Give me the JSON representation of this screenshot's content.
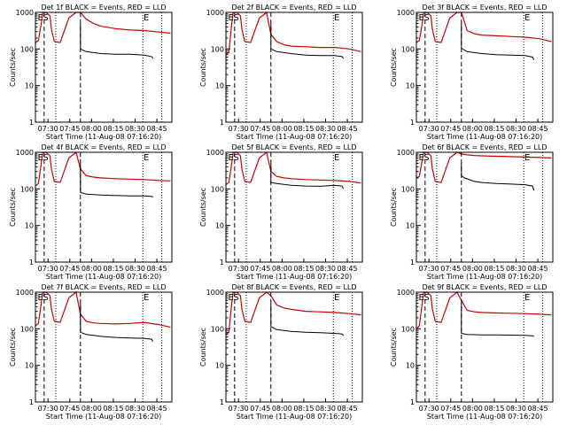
{
  "figure": {
    "ylabel": "Counts/sec",
    "xlabel": "Start Time (11-Aug-08 07:16:20)",
    "x_ticks": [
      "07:30",
      "07:45",
      "08:00",
      "08:15",
      "08:30",
      "08:45"
    ],
    "y_ticks": [
      "1",
      "10",
      "100",
      "1000"
    ],
    "marker_labels": [
      "E",
      "S",
      "E"
    ]
  },
  "colors": {
    "events": "#000000",
    "lld": "#cc0000",
    "axes": "#000000"
  },
  "chart_data": [
    {
      "type": "line",
      "title": "Det 1f BLACK = Events, RED = LLD",
      "xlabel": "Start Time (11-Aug-08 07:16:20)",
      "ylabel": "Counts/sec",
      "y_scale": "log",
      "ylim": [
        1,
        1000
      ],
      "x_unit": "minutes after 07:16:20",
      "xlim": [
        5,
        99
      ],
      "dashed_markers_min": [
        11,
        36
      ],
      "dotted_markers_min": [
        19,
        79,
        92
      ],
      "series": [
        {
          "name": "Events",
          "x": [
            36,
            40,
            50,
            60,
            70,
            80,
            85,
            86
          ],
          "y": [
            100,
            85,
            75,
            72,
            72,
            68,
            62,
            55
          ]
        },
        {
          "name": "LLD",
          "x": [
            5,
            7,
            9,
            10,
            12,
            13,
            15,
            16,
            18,
            22,
            28,
            33,
            36,
            40,
            45,
            50,
            60,
            70,
            80,
            90,
            98
          ],
          "y": [
            150,
            170,
            500,
            1000,
            1000,
            950,
            800,
            350,
            160,
            150,
            700,
            1000,
            1000,
            650,
            500,
            420,
            360,
            330,
            320,
            290,
            270
          ]
        }
      ]
    },
    {
      "type": "line",
      "title": "Det 2f BLACK = Events, RED = LLD",
      "xlabel": "Start Time (11-Aug-08 07:16:20)",
      "ylabel": "Counts/sec",
      "y_scale": "log",
      "ylim": [
        1,
        1000
      ],
      "x_unit": "minutes after 07:16:20",
      "xlim": [
        5,
        99
      ],
      "dashed_markers_min": [
        11,
        36
      ],
      "dotted_markers_min": [
        19,
        79,
        92
      ],
      "series": [
        {
          "name": "Events",
          "x": [
            36,
            40,
            50,
            60,
            70,
            80,
            85,
            86
          ],
          "y": [
            100,
            85,
            75,
            68,
            66,
            66,
            62,
            55
          ]
        },
        {
          "name": "LLD",
          "x": [
            5,
            7,
            9,
            10,
            12,
            13,
            15,
            16,
            18,
            22,
            28,
            33,
            36,
            40,
            45,
            50,
            60,
            70,
            80,
            90,
            98
          ],
          "y": [
            70,
            80,
            500,
            1000,
            1000,
            950,
            800,
            350,
            160,
            150,
            700,
            1000,
            250,
            160,
            130,
            120,
            115,
            110,
            110,
            100,
            85
          ]
        }
      ]
    },
    {
      "type": "line",
      "title": "Det 3f BLACK = Events, RED = LLD",
      "xlabel": "Start Time (11-Aug-08 07:16:20)",
      "ylabel": "Counts/sec",
      "y_scale": "log",
      "ylim": [
        1,
        1000
      ],
      "x_unit": "minutes after 07:16:20",
      "xlim": [
        5,
        99
      ],
      "dashed_markers_min": [
        11,
        36
      ],
      "dotted_markers_min": [
        19,
        79,
        92
      ],
      "series": [
        {
          "name": "Events",
          "x": [
            36,
            40,
            50,
            60,
            70,
            80,
            85,
            86
          ],
          "y": [
            105,
            85,
            75,
            70,
            68,
            66,
            60,
            50
          ]
        },
        {
          "name": "LLD",
          "x": [
            5,
            7,
            9,
            10,
            12,
            13,
            15,
            16,
            18,
            22,
            28,
            33,
            36,
            40,
            45,
            50,
            60,
            70,
            80,
            90,
            98
          ],
          "y": [
            150,
            170,
            500,
            1000,
            1000,
            950,
            800,
            350,
            160,
            150,
            700,
            1000,
            1000,
            320,
            260,
            240,
            230,
            220,
            210,
            190,
            160
          ]
        }
      ]
    },
    {
      "type": "line",
      "title": "Det 4f BLACK = Events, RED = LLD",
      "xlabel": "Start Time (11-Aug-08 07:16:20)",
      "ylabel": "Counts/sec",
      "y_scale": "log",
      "ylim": [
        1,
        1000
      ],
      "x_unit": "minutes after 07:16:20",
      "xlim": [
        5,
        99
      ],
      "dashed_markers_min": [
        11,
        36
      ],
      "dotted_markers_min": [
        19,
        79,
        92
      ],
      "series": [
        {
          "name": "Events",
          "x": [
            36,
            40,
            50,
            60,
            70,
            80,
            85,
            86
          ],
          "y": [
            80,
            72,
            68,
            66,
            64,
            64,
            62,
            60
          ]
        },
        {
          "name": "LLD",
          "x": [
            5,
            7,
            9,
            10,
            12,
            13,
            15,
            16,
            18,
            22,
            28,
            33,
            36,
            40,
            45,
            50,
            60,
            70,
            80,
            90,
            98
          ],
          "y": [
            120,
            140,
            500,
            1000,
            1000,
            950,
            800,
            350,
            160,
            150,
            700,
            1000,
            350,
            230,
            210,
            200,
            190,
            185,
            180,
            170,
            165
          ]
        }
      ]
    },
    {
      "type": "line",
      "title": "Det 5f BLACK = Events, RED = LLD",
      "xlabel": "Start Time (11-Aug-08 07:16:20)",
      "ylabel": "Counts/sec",
      "y_scale": "log",
      "ylim": [
        1,
        1000
      ],
      "x_unit": "minutes after 07:16:20",
      "xlim": [
        5,
        99
      ],
      "dashed_markers_min": [
        11,
        36
      ],
      "dotted_markers_min": [
        19,
        79,
        92
      ],
      "series": [
        {
          "name": "Events",
          "x": [
            36,
            40,
            50,
            60,
            70,
            80,
            85,
            86
          ],
          "y": [
            150,
            140,
            125,
            120,
            118,
            125,
            120,
            100
          ]
        },
        {
          "name": "LLD",
          "x": [
            5,
            7,
            9,
            10,
            12,
            13,
            15,
            16,
            18,
            22,
            28,
            33,
            36,
            40,
            45,
            50,
            60,
            70,
            80,
            90,
            98
          ],
          "y": [
            130,
            150,
            500,
            1000,
            1000,
            950,
            800,
            350,
            160,
            150,
            700,
            1000,
            300,
            220,
            200,
            190,
            180,
            175,
            170,
            160,
            145
          ]
        }
      ]
    },
    {
      "type": "line",
      "title": "Det 6f BLACK = Events, RED = LLD",
      "xlabel": "Start Time (11-Aug-08 07:16:20)",
      "ylabel": "Counts/sec",
      "y_scale": "log",
      "ylim": [
        1,
        1000
      ],
      "x_unit": "minutes after 07:16:20",
      "xlim": [
        5,
        99
      ],
      "dashed_markers_min": [
        11,
        36
      ],
      "dotted_markers_min": [
        19,
        79,
        92
      ],
      "series": [
        {
          "name": "Events",
          "x": [
            36,
            38,
            45,
            50,
            60,
            70,
            80,
            85,
            86
          ],
          "y": [
            230,
            200,
            160,
            150,
            140,
            135,
            130,
            120,
            90
          ]
        },
        {
          "name": "LLD",
          "x": [
            5,
            7,
            9,
            10,
            12,
            13,
            15,
            16,
            18,
            22,
            28,
            33,
            36,
            40,
            45,
            50,
            60,
            70,
            80,
            90,
            98
          ],
          "y": [
            200,
            220,
            600,
            1000,
            1000,
            950,
            800,
            350,
            160,
            150,
            700,
            1000,
            900,
            850,
            820,
            800,
            780,
            760,
            740,
            720,
            700
          ]
        }
      ]
    },
    {
      "type": "line",
      "title": "Det 7f BLACK = Events, RED = LLD",
      "xlabel": "Start Time (11-Aug-08 07:16:20)",
      "ylabel": "Counts/sec",
      "y_scale": "log",
      "ylim": [
        1,
        1000
      ],
      "x_unit": "minutes after 07:16:20",
      "xlim": [
        5,
        99
      ],
      "dashed_markers_min": [
        11,
        36
      ],
      "dotted_markers_min": [
        19,
        79,
        92
      ],
      "series": [
        {
          "name": "Events",
          "x": [
            36,
            40,
            50,
            60,
            70,
            80,
            85,
            86
          ],
          "y": [
            80,
            70,
            62,
            58,
            56,
            55,
            52,
            45
          ]
        },
        {
          "name": "LLD",
          "x": [
            5,
            7,
            9,
            10,
            12,
            13,
            15,
            16,
            18,
            22,
            28,
            33,
            36,
            40,
            45,
            50,
            60,
            70,
            80,
            90,
            98
          ],
          "y": [
            120,
            140,
            500,
            1000,
            1000,
            950,
            800,
            350,
            160,
            150,
            700,
            1000,
            250,
            160,
            145,
            140,
            135,
            140,
            150,
            130,
            110
          ]
        }
      ]
    },
    {
      "type": "line",
      "title": "Det 8f BLACK = Events, RED = LLD",
      "xlabel": "Start Time (11-Aug-08 07:16:20)",
      "ylabel": "Counts/sec",
      "y_scale": "log",
      "ylim": [
        1,
        1000
      ],
      "x_unit": "minutes after 07:16:20",
      "xlim": [
        5,
        99
      ],
      "dashed_markers_min": [
        11,
        36
      ],
      "dotted_markers_min": [
        19,
        79,
        92
      ],
      "series": [
        {
          "name": "Events",
          "x": [
            36,
            40,
            50,
            60,
            70,
            80,
            85,
            86
          ],
          "y": [
            115,
            95,
            85,
            80,
            78,
            75,
            72,
            65
          ]
        },
        {
          "name": "LLD",
          "x": [
            5,
            7,
            9,
            10,
            12,
            13,
            15,
            16,
            18,
            22,
            28,
            33,
            36,
            40,
            45,
            50,
            60,
            70,
            80,
            90,
            98
          ],
          "y": [
            70,
            80,
            500,
            1000,
            1000,
            950,
            800,
            350,
            160,
            150,
            700,
            1000,
            800,
            450,
            370,
            340,
            300,
            290,
            280,
            260,
            240
          ]
        }
      ]
    },
    {
      "type": "line",
      "title": "Det 9f BLACK = Events, RED = LLD",
      "xlabel": "Start Time (11-Aug-08 07:16:20)",
      "ylabel": "Counts/sec",
      "y_scale": "log",
      "ylim": [
        1,
        1000
      ],
      "x_unit": "minutes after 07:16:20",
      "xlim": [
        5,
        99
      ],
      "dashed_markers_min": [
        11,
        36
      ],
      "dotted_markers_min": [
        19,
        79,
        92
      ],
      "series": [
        {
          "name": "Events",
          "x": [
            36,
            40,
            50,
            60,
            70,
            80,
            85,
            86
          ],
          "y": [
            75,
            70,
            68,
            68,
            67,
            66,
            64,
            62
          ]
        },
        {
          "name": "LLD",
          "x": [
            5,
            7,
            9,
            10,
            12,
            13,
            15,
            16,
            18,
            22,
            28,
            33,
            36,
            40,
            45,
            50,
            60,
            70,
            80,
            90,
            98
          ],
          "y": [
            100,
            120,
            500,
            1000,
            1000,
            950,
            800,
            350,
            160,
            150,
            700,
            1000,
            600,
            320,
            290,
            280,
            270,
            265,
            260,
            250,
            240
          ]
        }
      ]
    }
  ]
}
